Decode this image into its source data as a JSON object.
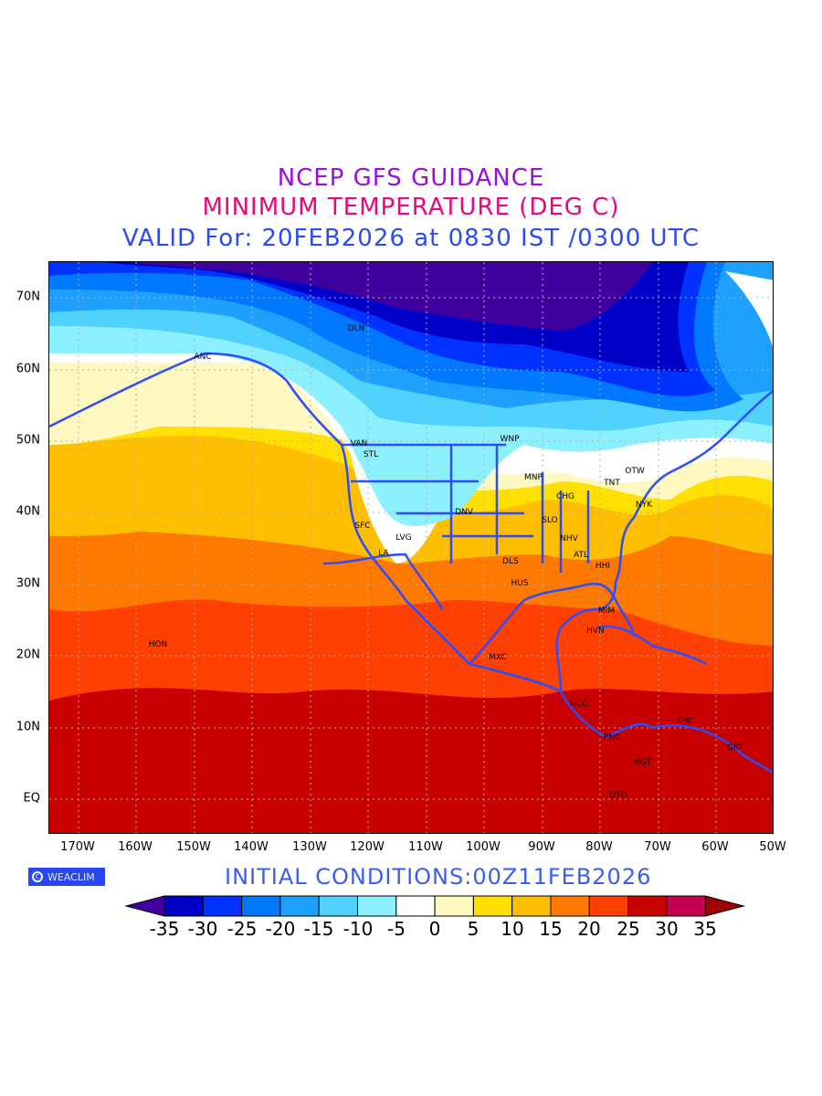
{
  "header": {
    "line1": "NCEP GFS GUIDANCE",
    "line2": "MINIMUM TEMPERATURE (DEG C)",
    "line3": "VALID For: 20FEB2026 at 0830 IST /0300 UTC"
  },
  "map": {
    "lat_labels": [
      "70N",
      "60N",
      "50N",
      "40N",
      "30N",
      "20N",
      "10N",
      "EQ"
    ],
    "lon_labels": [
      "170W",
      "160W",
      "150W",
      "140W",
      "130W",
      "120W",
      "110W",
      "100W",
      "90W",
      "80W",
      "70W",
      "60W",
      "50W"
    ],
    "cities": [
      "DLN",
      "ANC",
      "VAN",
      "STL",
      "WNP",
      "MNP",
      "OTW",
      "TNT",
      "CHG",
      "NYK",
      "DNV",
      "SLO",
      "SFC",
      "LVG",
      "NHV",
      "LA",
      "ATL",
      "DLS",
      "HHI",
      "HUS",
      "MIM",
      "HON",
      "HVN",
      "MXC",
      "NCG",
      "CRC",
      "PNC",
      "GRT",
      "BGT",
      "QTO"
    ]
  },
  "footer": {
    "logo": "WEACLIM",
    "logo_icon": "copyright-icon",
    "initial_conditions": "INITIAL  CONDITIONS:00Z11FEB2026"
  },
  "colorbar": {
    "labels": [
      "-35",
      "-30",
      "-25",
      "-20",
      "-15",
      "-10",
      "-5",
      "0",
      "5",
      "10",
      "15",
      "20",
      "25",
      "30",
      "35"
    ],
    "colors": [
      "#4000a0",
      "#0000c8",
      "#0032ff",
      "#0078ff",
      "#1ea0ff",
      "#50d2ff",
      "#8cf0ff",
      "#ffffff",
      "#fff8c0",
      "#ffe000",
      "#ffbe00",
      "#ff7800",
      "#ff4000",
      "#c80000",
      "#c80050",
      "#a00000"
    ]
  }
}
